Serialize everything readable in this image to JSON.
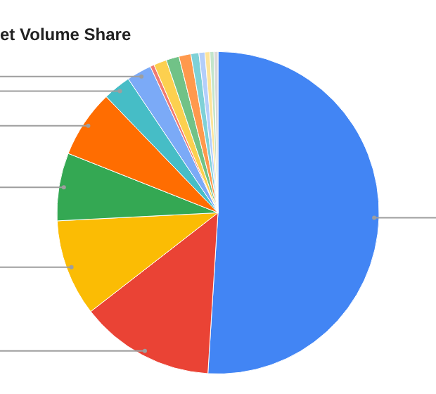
{
  "chart_data": {
    "type": "pie",
    "title": "et Volume Share",
    "categories": [
      null,
      null,
      null,
      null,
      null,
      null,
      null,
      null,
      null,
      null,
      null,
      null,
      null,
      null,
      null,
      null
    ],
    "values": [
      51.0,
      13.5,
      9.7,
      6.8,
      6.8,
      2.8,
      2.5,
      0.4,
      1.3,
      1.3,
      1.2,
      0.8,
      0.6,
      0.5,
      0.4,
      0.4
    ],
    "colors": [
      "#4285f4",
      "#ea4335",
      "#fbbc04",
      "#34a853",
      "#ff6d01",
      "#46bdc6",
      "#7baaf7",
      "#f07b72",
      "#fcd04f",
      "#71c287",
      "#ff994d",
      "#7ed1d7",
      "#b3cefb",
      "#fde49b",
      "#c2e5cb",
      "#d9d9d9"
    ],
    "legend": false
  }
}
